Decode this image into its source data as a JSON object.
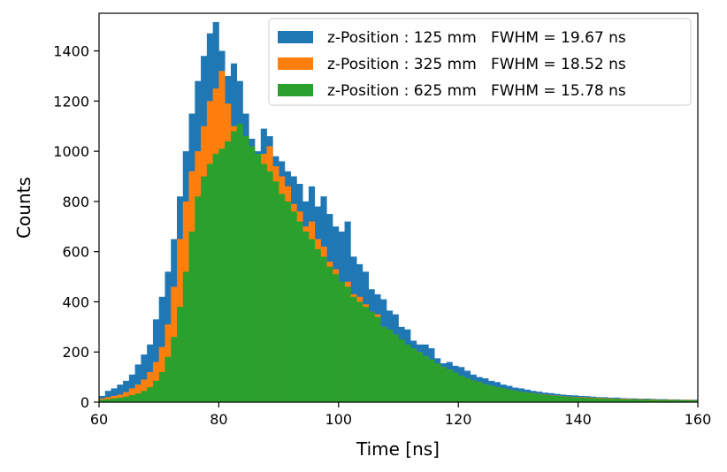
{
  "chart_data": {
    "type": "histogram",
    "title": "",
    "xlabel": "Time [ns]",
    "ylabel": "Counts",
    "xlim": [
      60,
      160
    ],
    "ylim": [
      0,
      1550
    ],
    "bin_start": 60,
    "bin_width": 1,
    "xticks": [
      60,
      80,
      100,
      120,
      140,
      160
    ],
    "yticks": [
      0,
      200,
      400,
      600,
      800,
      1000,
      1200,
      1400
    ],
    "grid": false,
    "legend_position": "top-right",
    "series": [
      {
        "name": "z-Position : 125 mm   FWHM = 19.67 ns",
        "color": "#1f77b4",
        "values": [
          25,
          45,
          55,
          70,
          85,
          110,
          150,
          190,
          230,
          330,
          420,
          520,
          650,
          820,
          1000,
          1150,
          1280,
          1380,
          1470,
          1515,
          1400,
          1300,
          1350,
          1280,
          1150,
          1050,
          1000,
          1090,
          1060,
          980,
          960,
          920,
          900,
          870,
          800,
          860,
          780,
          820,
          750,
          700,
          680,
          720,
          580,
          550,
          520,
          450,
          430,
          410,
          365,
          350,
          300,
          290,
          245,
          230,
          230,
          215,
          175,
          155,
          160,
          145,
          140,
          125,
          110,
          100,
          95,
          85,
          80,
          70,
          65,
          58,
          55,
          50,
          45,
          42,
          38,
          36,
          33,
          30,
          28,
          27,
          25,
          24,
          22,
          20,
          20,
          18,
          18,
          16,
          15,
          15,
          14,
          14,
          13,
          12,
          12,
          11,
          11,
          10,
          10,
          10
        ]
      },
      {
        "name": "z-Position : 325 mm   FWHM = 18.52 ns",
        "color": "#ff7f0e",
        "values": [
          15,
          20,
          25,
          30,
          40,
          55,
          70,
          90,
          120,
          160,
          220,
          310,
          460,
          650,
          800,
          920,
          1000,
          1100,
          1200,
          1250,
          1320,
          1190,
          1100,
          1000,
          960,
          930,
          940,
          990,
          1020,
          940,
          900,
          860,
          790,
          760,
          700,
          720,
          650,
          620,
          560,
          530,
          470,
          480,
          430,
          420,
          390,
          360,
          350,
          300,
          280,
          260,
          230,
          220,
          210,
          200,
          180,
          165,
          150,
          140,
          130,
          115,
          105,
          95,
          85,
          80,
          70,
          65,
          60,
          55,
          50,
          46,
          42,
          38,
          36,
          33,
          30,
          28,
          26,
          24,
          22,
          21,
          20,
          19,
          18,
          17,
          16,
          15,
          14,
          14,
          13,
          12,
          12,
          11,
          11,
          10,
          10,
          10,
          9,
          9,
          9,
          8
        ]
      },
      {
        "name": "z-Position : 625 mm   FWHM = 15.78 ns",
        "color": "#2ca02c",
        "values": [
          10,
          12,
          15,
          18,
          22,
          28,
          35,
          45,
          60,
          85,
          120,
          180,
          260,
          380,
          520,
          680,
          820,
          900,
          950,
          990,
          1010,
          1040,
          1080,
          1110,
          1060,
          1020,
          990,
          950,
          920,
          880,
          830,
          800,
          760,
          720,
          680,
          650,
          610,
          580,
          540,
          510,
          480,
          460,
          420,
          400,
          380,
          360,
          340,
          300,
          290,
          270,
          250,
          230,
          215,
          200,
          185,
          170,
          155,
          140,
          130,
          118,
          106,
          96,
          87,
          80,
          72,
          66,
          60,
          55,
          50,
          46,
          42,
          38,
          35,
          32,
          29,
          27,
          25,
          23,
          21,
          20,
          18,
          17,
          16,
          15,
          14,
          13,
          13,
          12,
          11,
          11,
          10,
          10,
          9,
          9,
          9,
          8,
          8,
          8,
          7,
          7
        ]
      }
    ]
  }
}
